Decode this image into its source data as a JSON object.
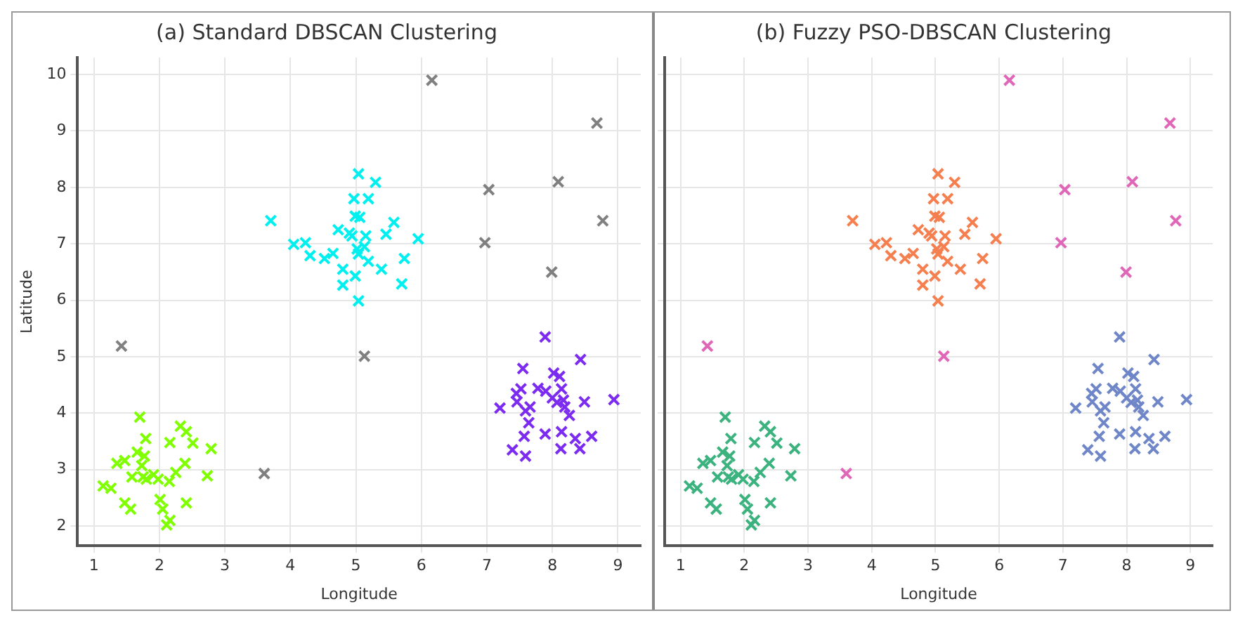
{
  "chart_data": [
    {
      "type": "scatter",
      "title": "(a) Standard DBSCAN Clustering",
      "xlabel": "Longitude",
      "ylabel": "Latitude",
      "xlim": [
        0.75,
        9.35
      ],
      "ylim": [
        1.65,
        10.3
      ],
      "xticks": [
        1,
        2,
        3,
        4,
        5,
        6,
        7,
        8,
        9
      ],
      "yticks": [
        2,
        3,
        4,
        5,
        6,
        7,
        8,
        9,
        10
      ],
      "grid": true,
      "marker": "cross",
      "legend": false,
      "series": [
        {
          "color": "#7fff00",
          "x": [
            1.14,
            1.26,
            1.35,
            1.47,
            1.47,
            1.56,
            1.58,
            1.7,
            1.66,
            1.73,
            1.75,
            1.79,
            1.77,
            1.8,
            1.91,
            1.98,
            2.01,
            2.05,
            2.11,
            2.16,
            2.16,
            2.15,
            2.25,
            2.32,
            2.39,
            2.41,
            2.41,
            2.51,
            2.73,
            2.79
          ],
          "values": [
            2.71,
            2.67,
            3.11,
            3.16,
            2.41,
            2.3,
            2.87,
            3.93,
            3.31,
            3.07,
            2.87,
            3.55,
            3.24,
            2.83,
            2.91,
            2.83,
            2.47,
            2.3,
            2.02,
            2.1,
            3.48,
            2.79,
            2.95,
            3.77,
            3.11,
            2.41,
            3.67,
            3.47,
            2.89,
            3.37
          ]
        },
        {
          "color": "#00f0f0",
          "x": [
            3.7,
            4.05,
            4.23,
            4.3,
            4.52,
            4.65,
            4.73,
            4.8,
            4.8,
            4.9,
            4.94,
            4.97,
            4.99,
            5.04,
            4.99,
            5.02,
            5.04,
            5.06,
            5.04,
            5.13,
            5.15,
            5.19,
            5.19,
            5.3,
            5.39,
            5.46,
            5.58,
            5.7,
            5.74,
            5.95
          ],
          "values": [
            7.41,
            6.99,
            7.02,
            6.79,
            6.74,
            6.83,
            7.25,
            6.55,
            6.27,
            7.19,
            7.14,
            7.8,
            7.49,
            8.24,
            6.43,
            6.91,
            6.82,
            7.47,
            5.99,
            6.95,
            7.14,
            7.8,
            6.69,
            8.09,
            6.55,
            7.17,
            7.38,
            6.29,
            6.74,
            7.09
          ]
        },
        {
          "color": "#7b2cf0",
          "x": [
            7.2,
            7.39,
            7.45,
            7.46,
            7.52,
            7.55,
            7.57,
            7.59,
            7.59,
            7.64,
            7.66,
            7.78,
            7.89,
            7.89,
            7.9,
            8.0,
            8.02,
            8.07,
            8.11,
            8.13,
            8.14,
            8.14,
            8.17,
            8.19,
            8.26,
            8.35,
            8.42,
            8.43,
            8.49,
            8.6,
            8.94
          ],
          "values": [
            4.09,
            3.35,
            4.35,
            4.2,
            4.43,
            4.79,
            3.59,
            3.24,
            4.04,
            3.83,
            4.11,
            4.44,
            5.35,
            3.63,
            4.39,
            4.27,
            4.71,
            4.19,
            4.65,
            3.37,
            4.43,
            3.67,
            4.23,
            4.11,
            3.96,
            3.55,
            3.37,
            4.95,
            4.2,
            3.59,
            4.24
          ]
        },
        {
          "color": "#808080",
          "x": [
            1.42,
            3.6,
            5.13,
            6.16,
            6.97,
            7.03,
            7.99,
            8.09,
            8.68,
            8.77
          ],
          "values": [
            5.19,
            2.93,
            5.01,
            9.9,
            7.02,
            7.96,
            6.5,
            8.1,
            9.14,
            7.41
          ]
        }
      ]
    },
    {
      "type": "scatter",
      "title": "(b) Fuzzy PSO-DBSCAN Clustering",
      "xlabel": "Longitude",
      "xlim": [
        0.75,
        9.35
      ],
      "ylim": [
        1.65,
        10.3
      ],
      "xticks": [
        1,
        2,
        3,
        4,
        5,
        6,
        7,
        8,
        9
      ],
      "yticks": [
        2,
        3,
        4,
        5,
        6,
        7,
        8,
        9,
        10
      ],
      "tick_labels": "x",
      "grid": true,
      "marker": "cross",
      "legend": false,
      "series": [
        {
          "color": "#3cb37f",
          "x": [
            1.14,
            1.26,
            1.35,
            1.47,
            1.47,
            1.56,
            1.58,
            1.7,
            1.66,
            1.73,
            1.75,
            1.79,
            1.77,
            1.8,
            1.91,
            1.98,
            2.01,
            2.05,
            2.11,
            2.16,
            2.16,
            2.15,
            2.25,
            2.32,
            2.39,
            2.41,
            2.41,
            2.51,
            2.73,
            2.79
          ],
          "values": [
            2.71,
            2.67,
            3.11,
            3.16,
            2.41,
            2.3,
            2.87,
            3.93,
            3.31,
            3.07,
            2.87,
            3.55,
            3.24,
            2.83,
            2.91,
            2.83,
            2.47,
            2.3,
            2.02,
            2.1,
            3.48,
            2.79,
            2.95,
            3.77,
            3.11,
            2.41,
            3.67,
            3.47,
            2.89,
            3.37
          ]
        },
        {
          "color": "#f57f4f",
          "x": [
            3.7,
            4.05,
            4.23,
            4.3,
            4.52,
            4.65,
            4.73,
            4.8,
            4.8,
            4.9,
            4.94,
            4.97,
            4.99,
            5.04,
            4.99,
            5.02,
            5.04,
            5.06,
            5.04,
            5.13,
            5.15,
            5.19,
            5.19,
            5.3,
            5.39,
            5.46,
            5.58,
            5.7,
            5.74,
            5.95
          ],
          "values": [
            7.41,
            6.99,
            7.02,
            6.79,
            6.74,
            6.83,
            7.25,
            6.55,
            6.27,
            7.19,
            7.14,
            7.8,
            7.49,
            8.24,
            6.43,
            6.91,
            6.82,
            7.47,
            5.99,
            6.95,
            7.14,
            7.8,
            6.69,
            8.09,
            6.55,
            7.17,
            7.38,
            6.29,
            6.74,
            7.09
          ]
        },
        {
          "color": "#6f86c8",
          "x": [
            7.2,
            7.39,
            7.45,
            7.46,
            7.52,
            7.55,
            7.57,
            7.59,
            7.59,
            7.64,
            7.66,
            7.78,
            7.89,
            7.89,
            7.9,
            8.0,
            8.02,
            8.07,
            8.11,
            8.13,
            8.14,
            8.14,
            8.17,
            8.19,
            8.26,
            8.35,
            8.42,
            8.43,
            8.49,
            8.6,
            8.94
          ],
          "values": [
            4.09,
            3.35,
            4.35,
            4.2,
            4.43,
            4.79,
            3.59,
            3.24,
            4.04,
            3.83,
            4.11,
            4.44,
            5.35,
            3.63,
            4.39,
            4.27,
            4.71,
            4.19,
            4.65,
            3.37,
            4.43,
            3.67,
            4.23,
            4.11,
            3.96,
            3.55,
            3.37,
            4.95,
            4.2,
            3.59,
            4.24
          ]
        },
        {
          "color": "#e066b8",
          "x": [
            1.42,
            3.6,
            5.13,
            6.16,
            6.97,
            7.03,
            7.99,
            8.09,
            8.68,
            8.77
          ],
          "values": [
            5.19,
            2.93,
            5.01,
            9.9,
            7.02,
            7.96,
            6.5,
            8.1,
            9.14,
            7.41
          ]
        }
      ]
    }
  ]
}
